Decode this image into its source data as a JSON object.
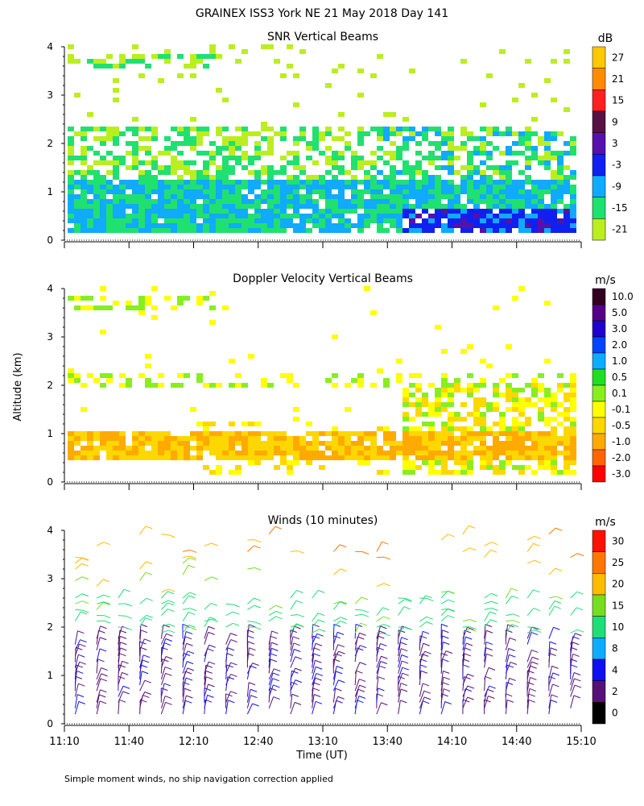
{
  "figure": {
    "title": "GRAINEX ISS3 York NE  21 May 2018 Day 141",
    "ylabel": "Altitude (km)",
    "xlabel": "Time (UT)",
    "footnote": "Simple moment winds, no ship navigation correction applied"
  },
  "chart_data": [
    {
      "type": "heatmap",
      "title": "SNR Vertical Beams",
      "xlim": [
        "11:10",
        "15:10"
      ],
      "ylim": [
        0,
        4
      ],
      "yticks": [
        "0",
        "1",
        "2",
        "3",
        "4"
      ],
      "colorbar": {
        "unit": "dB",
        "labels": [
          "27",
          "21",
          "15",
          "9",
          "3",
          "-3",
          "-9",
          "-15",
          "-21"
        ],
        "colors": [
          "#ffc800",
          "#ff8c00",
          "#ff2020",
          "#551144",
          "#5511aa",
          "#1020ee",
          "#10aaff",
          "#20e070",
          "#bbee20"
        ]
      },
      "notes": "SNR mostly -21 to -9 dB below 2.3 km, dense layer 0.2-1.2 km, strongest (-3 to 3 dB) near surface after 13:50"
    },
    {
      "type": "heatmap",
      "title": "Doppler Velocity Vertical Beams",
      "xlim": [
        "11:10",
        "15:10"
      ],
      "ylim": [
        0,
        4
      ],
      "yticks": [
        "0",
        "1",
        "2",
        "3",
        "4"
      ],
      "colorbar": {
        "unit": "m/s",
        "labels": [
          "10.0",
          "5.0",
          "3.0",
          "2.0",
          "1.0",
          "0.5",
          "0.1",
          "-0.1",
          "-0.5",
          "-1.0",
          "-2.0",
          "-3.0"
        ],
        "colors": [
          "#330022",
          "#550088",
          "#2200cc",
          "#0044ff",
          "#10aaff",
          "#22dd22",
          "#88ee22",
          "#ffff00",
          "#ffd700",
          "#ffaa00",
          "#ff6600",
          "#ff0000"
        ]
      },
      "notes": "Velocities mostly -0.5 to -1.0 m/s in 0.4-1.0 km layer, near zero elsewhere"
    },
    {
      "type": "scatter",
      "title": "Winds (10 minutes)",
      "xlim": [
        "11:10",
        "15:10"
      ],
      "ylim": [
        0,
        4
      ],
      "yticks": [
        "0",
        "1",
        "2",
        "3",
        "4"
      ],
      "x_tick_labels": [
        "11:10",
        "11:40",
        "12:10",
        "12:40",
        "13:10",
        "13:40",
        "14:10",
        "14:40",
        "15:10"
      ],
      "colorbar": {
        "unit": "m/s",
        "labels": [
          "30",
          "25",
          "20",
          "15",
          "10",
          "8",
          "4",
          "2",
          "0"
        ],
        "colors": [
          "#ff1100",
          "#ff7700",
          "#ffbb00",
          "#77dd22",
          "#22dd77",
          "#10aaff",
          "#1010ee",
          "#551177",
          "#000000"
        ]
      },
      "notes": "Wind barbs every 10 min; 2-4 m/s in lowest 1.5 km, 10-15 m/s near 2-2.5 km, 20-30 m/s near 3.5-4 km"
    }
  ]
}
